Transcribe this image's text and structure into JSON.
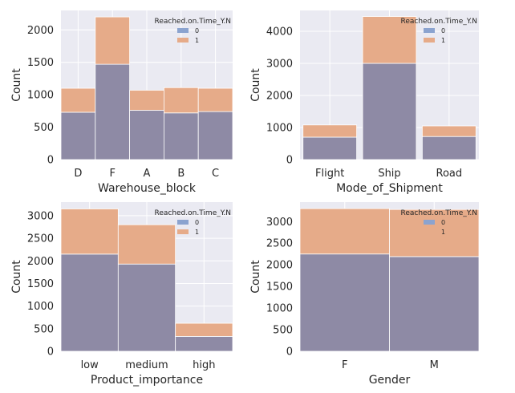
{
  "chart_data": [
    {
      "type": "bar",
      "stacked": true,
      "xlabel": "Warehouse_block",
      "ylabel": "Count",
      "categories": [
        "D",
        "F",
        "A",
        "B",
        "C"
      ],
      "series": [
        {
          "name": "0",
          "values": [
            730,
            1470,
            760,
            720,
            740
          ]
        },
        {
          "name": "1",
          "values": [
            370,
            730,
            310,
            390,
            360
          ]
        }
      ],
      "ylim": [
        0,
        2300
      ],
      "yticks": [
        0,
        500,
        1000,
        1500,
        2000
      ],
      "legend": {
        "title": "Reached.on.Time_Y.N",
        "placement": "top-right"
      },
      "grid": true
    },
    {
      "type": "bar",
      "stacked": true,
      "xlabel": "Mode_of_Shipment",
      "ylabel": "Count",
      "categories": [
        "Flight",
        "Ship",
        "Road"
      ],
      "series": [
        {
          "name": "0",
          "values": [
            700,
            3000,
            720
          ]
        },
        {
          "name": "1",
          "values": [
            380,
            1460,
            330
          ]
        }
      ],
      "ylim": [
        0,
        4650
      ],
      "yticks": [
        0,
        1000,
        2000,
        3000,
        4000
      ],
      "legend": {
        "title": "Reached.on.Time_Y.N",
        "placement": "top-right"
      },
      "grid": true
    },
    {
      "type": "bar",
      "stacked": true,
      "xlabel": "Product_importance",
      "ylabel": "Count",
      "categories": [
        "low",
        "medium",
        "high"
      ],
      "series": [
        {
          "name": "0",
          "values": [
            2150,
            1930,
            330
          ]
        },
        {
          "name": "1",
          "values": [
            1000,
            870,
            290
          ]
        }
      ],
      "ylim": [
        0,
        3300
      ],
      "yticks": [
        0,
        500,
        1000,
        1500,
        2000,
        2500,
        3000
      ],
      "legend": {
        "title": "Reached.on.Time_Y.N",
        "placement": "top-right"
      },
      "grid": true
    },
    {
      "type": "bar",
      "stacked": true,
      "xlabel": "Gender",
      "ylabel": "Count",
      "categories": [
        "F",
        "M"
      ],
      "series": [
        {
          "name": "0",
          "values": [
            2250,
            2190
          ]
        },
        {
          "name": "1",
          "values": [
            1050,
            1090
          ]
        }
      ],
      "ylim": [
        0,
        3450
      ],
      "yticks": [
        0,
        500,
        1000,
        1500,
        2000,
        2500,
        3000
      ],
      "legend": {
        "title": "Reached.on.Time_Y.N",
        "placement": "top-right"
      },
      "grid": true
    }
  ],
  "colors": {
    "background": "#eaeaf2",
    "grid": "#ffffff",
    "series_0": "#8e8aa5",
    "series_1": "#e6ab89",
    "legend_0": "#8ba3cf",
    "legend_1": "#e6ab89"
  }
}
